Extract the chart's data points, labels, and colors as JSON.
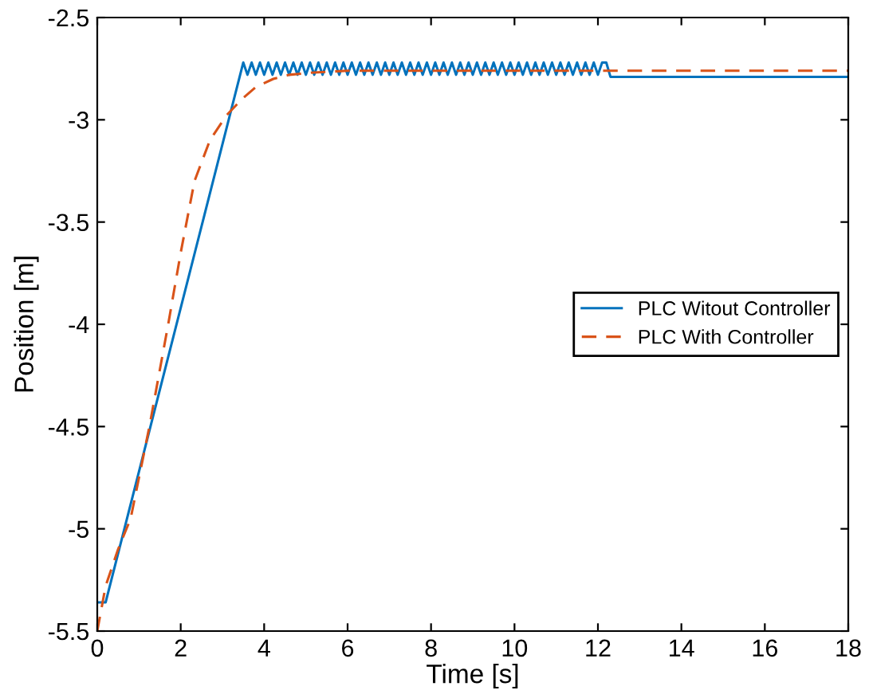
{
  "chart_data": {
    "type": "line",
    "xlabel": "Time [s]",
    "ylabel": "Position [m]",
    "xlim": [
      0,
      18
    ],
    "ylim": [
      -5.5,
      -2.5
    ],
    "xticks": [
      0,
      2,
      4,
      6,
      8,
      10,
      12,
      14,
      16,
      18
    ],
    "yticks": [
      -5.5,
      -5,
      -4.5,
      -4,
      -3.5,
      -3,
      -2.5
    ],
    "grid": false,
    "legend": "right",
    "series": [
      {
        "name": "PLC Witout Controller",
        "color": "#0072bd",
        "line_style": "solid",
        "x": [
          0,
          0.2,
          3.5,
          3.6,
          3.7,
          3.8,
          3.9,
          4.0,
          4.1,
          4.2,
          4.3,
          4.4,
          4.5,
          4.6,
          4.7,
          4.8,
          4.9,
          5.0,
          5.1,
          5.2,
          5.3,
          5.4,
          5.5,
          5.6,
          5.7,
          5.8,
          5.9,
          6.0,
          6.1,
          6.2,
          6.3,
          6.4,
          6.5,
          6.6,
          6.7,
          6.8,
          6.9,
          7.0,
          7.1,
          7.2,
          7.3,
          7.4,
          7.5,
          7.6,
          7.7,
          7.8,
          7.9,
          8.0,
          8.1,
          8.2,
          8.3,
          8.4,
          8.5,
          8.6,
          8.7,
          8.8,
          8.9,
          9.0,
          9.1,
          9.2,
          9.3,
          9.4,
          9.5,
          9.6,
          9.7,
          9.8,
          9.9,
          10.0,
          10.1,
          10.2,
          10.3,
          10.4,
          10.5,
          10.6,
          10.7,
          10.8,
          10.9,
          11.0,
          11.1,
          11.2,
          11.3,
          11.4,
          11.5,
          11.6,
          11.7,
          11.8,
          11.9,
          12.0,
          12.1,
          12.2,
          12.3,
          18
        ],
        "values": [
          -5.36,
          -5.36,
          -2.72,
          -2.78,
          -2.72,
          -2.78,
          -2.72,
          -2.78,
          -2.72,
          -2.78,
          -2.72,
          -2.78,
          -2.72,
          -2.78,
          -2.72,
          -2.78,
          -2.72,
          -2.78,
          -2.72,
          -2.78,
          -2.72,
          -2.78,
          -2.72,
          -2.78,
          -2.72,
          -2.78,
          -2.72,
          -2.78,
          -2.72,
          -2.78,
          -2.72,
          -2.78,
          -2.72,
          -2.78,
          -2.72,
          -2.78,
          -2.72,
          -2.78,
          -2.72,
          -2.78,
          -2.72,
          -2.78,
          -2.72,
          -2.78,
          -2.72,
          -2.78,
          -2.72,
          -2.78,
          -2.72,
          -2.78,
          -2.72,
          -2.78,
          -2.72,
          -2.78,
          -2.72,
          -2.78,
          -2.72,
          -2.78,
          -2.72,
          -2.78,
          -2.72,
          -2.78,
          -2.72,
          -2.78,
          -2.72,
          -2.78,
          -2.72,
          -2.78,
          -2.72,
          -2.78,
          -2.72,
          -2.78,
          -2.72,
          -2.78,
          -2.72,
          -2.78,
          -2.72,
          -2.78,
          -2.72,
          -2.78,
          -2.72,
          -2.78,
          -2.72,
          -2.78,
          -2.72,
          -2.78,
          -2.72,
          -2.78,
          -2.72,
          -2.72,
          -2.79,
          -2.79
        ]
      },
      {
        "name": "PLC With Controller",
        "color": "#d95319",
        "line_style": "dashed",
        "x": [
          0,
          0.2,
          0.5,
          0.8,
          1.25,
          1.7,
          2.0,
          2.33,
          2.7,
          3.09,
          3.46,
          3.8,
          4.22,
          4.6,
          5.12,
          6.0,
          8.0,
          12.0,
          18
        ],
        "values": [
          -5.5,
          -5.28,
          -5.1,
          -4.95,
          -4.5,
          -4.0,
          -3.65,
          -3.3,
          -3.1,
          -2.98,
          -2.9,
          -2.84,
          -2.8,
          -2.78,
          -2.77,
          -2.76,
          -2.76,
          -2.76,
          -2.76
        ]
      }
    ]
  }
}
